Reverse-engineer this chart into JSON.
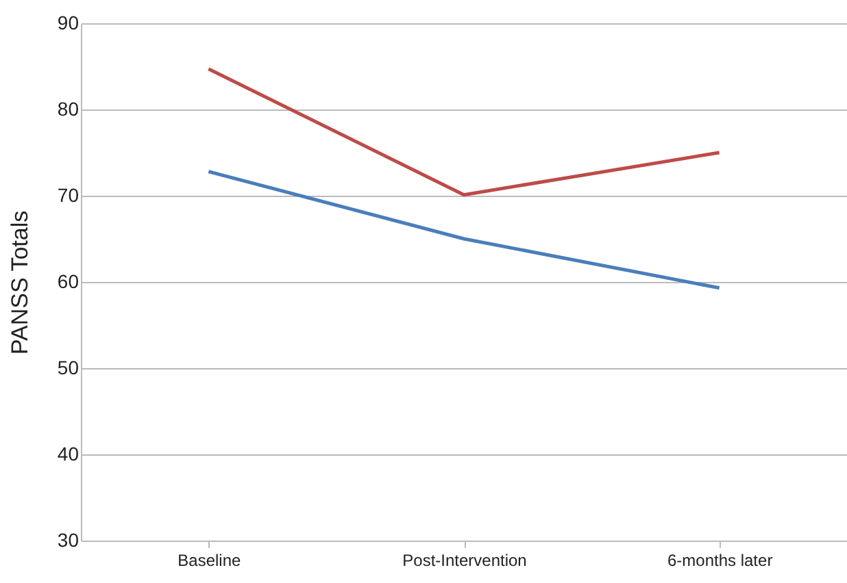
{
  "chart_data": {
    "type": "line",
    "ylabel": "PANSS Totals",
    "categories": [
      "Baseline",
      "Post-Intervention",
      "6-months later"
    ],
    "series": [
      {
        "color": "#be4b48",
        "values": [
          84.7,
          70.1,
          75.0
        ]
      },
      {
        "color": "#4a7ebb",
        "values": [
          72.8,
          65.0,
          59.3
        ]
      }
    ],
    "ylim": [
      30,
      90
    ],
    "yticks": [
      30,
      40,
      50,
      60,
      70,
      80,
      90
    ],
    "grid": "y",
    "marker": "none",
    "line_style": "solid"
  }
}
